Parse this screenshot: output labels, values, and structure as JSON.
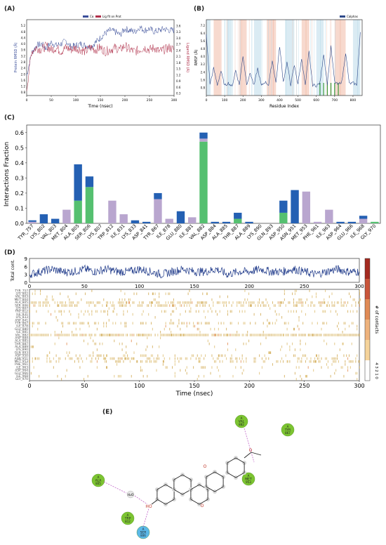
{
  "panels": {
    "a_label": "(A)",
    "b_label": "(B)",
    "c_label": "(C)",
    "d_label": "(D)",
    "e_label": "(E)"
  },
  "chart_data": [
    {
      "id": "A",
      "type": "line",
      "xlabel": "Time (nsec)",
      "ylabel": "Protein RMSD (Å)",
      "y2label": "Ligand RMSD (Å)",
      "legend": [
        "Cα",
        "Lig fit on Prot"
      ],
      "legend_placement": "top-center",
      "xticks": [
        0,
        50,
        100,
        150,
        200,
        250,
        300
      ],
      "yticks": [
        0.8,
        1.2,
        1.6,
        2.0,
        2.4,
        2.8,
        3.2,
        3.6,
        4.0,
        4.4,
        4.8,
        5.2
      ],
      "y2ticks": [
        0.3,
        0.6,
        0.9,
        1.2,
        1.5,
        1.8,
        2.1,
        2.4,
        2.7,
        3.0,
        3.3,
        3.6
      ],
      "xlim": [
        0,
        300
      ],
      "ylim": [
        0.6,
        5.6
      ],
      "y2lim": [
        0.2,
        3.9
      ],
      "colors": {
        "protein": "#3a4e9a",
        "ligand": "#b0304a"
      },
      "series": [
        {
          "name": "Cα",
          "x": [
            0,
            10,
            20,
            30,
            40,
            50,
            60,
            70,
            80,
            90,
            100,
            110,
            120,
            130,
            140,
            150,
            160,
            170,
            180,
            190,
            200,
            210,
            220,
            230,
            240,
            250,
            260,
            270,
            280,
            290,
            300
          ],
          "values": [
            1.9,
            3.4,
            3.9,
            4.0,
            3.7,
            4.1,
            3.9,
            4.0,
            4.2,
            3.8,
            3.9,
            4.0,
            3.9,
            3.8,
            4.1,
            4.4,
            4.7,
            4.9,
            4.8,
            4.6,
            5.0,
            4.9,
            4.8,
            5.1,
            4.9,
            5.0,
            4.8,
            4.9,
            5.0,
            4.9,
            4.9
          ]
        },
        {
          "name": "Lig fit on Prot",
          "x": [
            0,
            10,
            20,
            30,
            40,
            50,
            60,
            70,
            80,
            90,
            100,
            110,
            120,
            130,
            140,
            150,
            160,
            170,
            180,
            190,
            200,
            210,
            220,
            230,
            240,
            250,
            260,
            270,
            280,
            290,
            300
          ],
          "values": [
            0.8,
            2.8,
            3.0,
            2.9,
            3.1,
            2.9,
            3.0,
            2.8,
            3.0,
            2.9,
            3.0,
            2.9,
            2.8,
            3.0,
            2.9,
            3.0,
            2.8,
            2.9,
            3.0,
            2.9,
            3.1,
            2.9,
            2.8,
            2.9,
            3.0,
            2.9,
            3.0,
            2.8,
            2.9,
            3.0,
            2.9
          ]
        }
      ]
    },
    {
      "id": "B",
      "type": "line",
      "xlabel": "Residue Index",
      "ylabel": "RMSF (Å)",
      "legend": [
        "Calphas"
      ],
      "legend_placement": "top-right",
      "xticks": [
        0,
        100,
        200,
        300,
        400,
        500,
        600,
        700,
        800
      ],
      "yticks": [
        0.8,
        1.6,
        2.4,
        3.2,
        4.0,
        4.8,
        5.6,
        6.4,
        7.2
      ],
      "xlim": [
        0,
        850
      ],
      "ylim": [
        0,
        7.8
      ],
      "x": [
        0,
        20,
        40,
        60,
        80,
        100,
        120,
        140,
        160,
        180,
        200,
        220,
        240,
        260,
        280,
        300,
        320,
        340,
        360,
        380,
        400,
        420,
        440,
        460,
        480,
        500,
        520,
        540,
        560,
        580,
        600,
        620,
        640,
        660,
        680,
        700,
        720,
        740,
        760,
        780,
        800,
        820,
        840
      ],
      "values": [
        6.2,
        1.2,
        2.8,
        1.1,
        2.5,
        1.0,
        1.3,
        0.9,
        2.6,
        1.1,
        4.1,
        1.2,
        2.3,
        1.0,
        2.8,
        1.0,
        1.4,
        1.1,
        3.6,
        1.3,
        5.1,
        1.4,
        3.4,
        1.1,
        3.1,
        1.2,
        3.8,
        1.0,
        4.5,
        1.1,
        1.0,
        1.3,
        4.3,
        1.2,
        5.0,
        1.4,
        1.1,
        1.5,
        4.4,
        1.2,
        1.3,
        1.1,
        6.4
      ],
      "highlight_bands_x": [
        [
          0,
          20
        ],
        [
          40,
          80
        ],
        [
          110,
          140
        ],
        [
          180,
          220
        ],
        [
          260,
          300
        ],
        [
          330,
          380
        ],
        [
          430,
          480
        ],
        [
          520,
          560
        ],
        [
          600,
          640
        ],
        [
          700,
          760
        ],
        [
          800,
          840
        ]
      ],
      "contact_residues_x": [
        620,
        640,
        660,
        680,
        700,
        720
      ]
    },
    {
      "id": "C",
      "type": "bar",
      "ylabel": "Interactions Fraction",
      "ylim": [
        0,
        0.65
      ],
      "yticks": [
        0.0,
        0.1,
        0.2,
        0.3,
        0.4,
        0.5,
        0.6
      ],
      "categories": [
        "TYR_757",
        "LYS_802",
        "VAL_803",
        "MET_804",
        "ALA_805",
        "SER_806",
        "LYS_807",
        "TRP_812",
        "ILE_831",
        "LYS_833",
        "ASP_841",
        "TYR_867",
        "ILE_878",
        "GLU_880",
        "ILE_881",
        "VAL_882",
        "ASP_884",
        "ALA_885",
        "THR_887",
        "ALA_889",
        "LYS_890",
        "GLN_893",
        "ASP_950",
        "ASN_951",
        "MET_953",
        "PHE_961",
        "ILE_963",
        "ASP_964",
        "GLU_966",
        "ILE_968",
        "GLY_970"
      ],
      "colors": {
        "H-bonds": "#55c070",
        "Hydrophobic": "#b9a6cf",
        "Water bridges": "#2460b3"
      },
      "series": [
        {
          "name": "H-bonds",
          "values": [
            0,
            0,
            0,
            0,
            0.15,
            0.24,
            0,
            0,
            0,
            0,
            0,
            0,
            0,
            0,
            0,
            0.54,
            0,
            0,
            0.03,
            0,
            0,
            0,
            0.07,
            0,
            0,
            0,
            0,
            0,
            0,
            0,
            0.01
          ]
        },
        {
          "name": "Hydrophobic",
          "values": [
            0.01,
            0,
            0,
            0.09,
            0,
            0,
            0,
            0.15,
            0.06,
            0,
            0,
            0.16,
            0.03,
            0,
            0.04,
            0.02,
            0,
            0,
            0,
            0,
            0,
            0,
            0,
            0,
            0.21,
            0.01,
            0.09,
            0,
            0,
            0.03,
            0
          ]
        },
        {
          "name": "Water bridges",
          "values": [
            0.01,
            0.06,
            0.03,
            0,
            0.24,
            0.07,
            0,
            0,
            0,
            0.02,
            0.01,
            0.04,
            0,
            0.08,
            0,
            0.04,
            0.01,
            0.01,
            0.04,
            0.01,
            0,
            0,
            0.08,
            0.22,
            0,
            0,
            0,
            0.01,
            0.01,
            0.02,
            0
          ]
        }
      ]
    },
    {
      "id": "D",
      "type": "heatmap",
      "xlabel": "Time (nsec)",
      "ylabel_top": "Total cont.",
      "colorbar_label": "# of contacts",
      "xticks": [
        0,
        50,
        100,
        150,
        200,
        250,
        300
      ],
      "top_yticks": [
        0,
        3,
        6,
        9
      ],
      "colorbar_ticks": [
        0,
        1,
        2,
        3,
        4
      ],
      "xlim": [
        0,
        300
      ],
      "total_contacts_x": [
        0,
        10,
        20,
        30,
        40,
        50,
        60,
        70,
        80,
        90,
        100,
        110,
        120,
        130,
        140,
        150,
        160,
        170,
        180,
        190,
        200,
        210,
        220,
        230,
        240,
        250,
        260,
        270,
        280,
        290,
        300
      ],
      "total_contacts": [
        3,
        4,
        5,
        4,
        4,
        5,
        4,
        5,
        4,
        4,
        5,
        4,
        3,
        4,
        5,
        4,
        4,
        5,
        3,
        4,
        4,
        5,
        4,
        4,
        5,
        4,
        3,
        4,
        5,
        4,
        4
      ],
      "rows": [
        "TYR_757",
        "LYS_802",
        "VAL_803",
        "MET_804",
        "ALA_805",
        "SER_806",
        "LYS_807",
        "TRP_812",
        "ILE_831",
        "LYS_833",
        "ASP_841",
        "TYR_867",
        "ILE_878",
        "GLU_880",
        "ILE_881",
        "VAL_882",
        "ASP_884",
        "ALA_885",
        "THR_887",
        "ALA_889",
        "LYS_890",
        "GLN_893",
        "ASP_950",
        "ASN_951",
        "MET_953",
        "PHE_961",
        "ILE_963",
        "ASP_964",
        "GLU_966",
        "ILE_968",
        "GLY_970"
      ],
      "row_density": [
        0.03,
        0.1,
        0.05,
        0.15,
        0.55,
        0.45,
        0.02,
        0.25,
        0.08,
        0.04,
        0.03,
        0.3,
        0.05,
        0.1,
        0.06,
        0.9,
        0.03,
        0.03,
        0.1,
        0.02,
        0.02,
        0.03,
        0.2,
        0.35,
        0.3,
        0.03,
        0.12,
        0.04,
        0.05,
        0.08,
        0.02
      ]
    }
  ],
  "ligand_diagram": {
    "residues": [
      {
        "chain": "A",
        "name": "VAL",
        "num": "882",
        "type": "hydrophobic"
      },
      {
        "chain": "A",
        "name": "TYR",
        "num": "867",
        "type": "hydrophobic"
      },
      {
        "chain": "A",
        "name": "ALA",
        "num": "805",
        "type": "hydrophobic"
      },
      {
        "chain": "A",
        "name": "MET",
        "num": "953",
        "type": "hydrophobic"
      },
      {
        "chain": "A",
        "name": "TRP",
        "num": "812",
        "type": "hydrophobic"
      },
      {
        "chain": "A",
        "name": "SER",
        "num": "806",
        "type": "polar"
      }
    ],
    "water_label": "H₂O",
    "atom_labels": {
      "ho": "HO",
      "o_ring": "O",
      "o_ether": "O",
      "o_top": "O"
    },
    "colors": {
      "hydrophobic": "#7cc431",
      "polar": "#5bb8e8",
      "hbond": "#c266c9"
    }
  }
}
